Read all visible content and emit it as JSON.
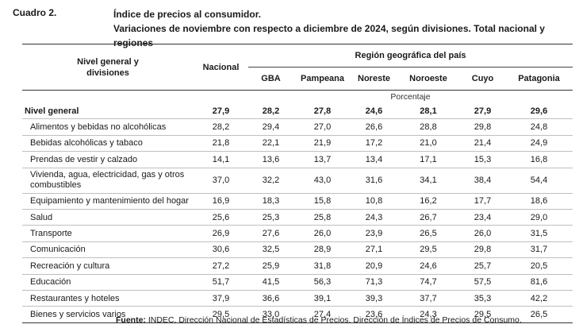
{
  "header": {
    "cuadro": "Cuadro 2.",
    "title_line1": "Índice de precios al consumidor.",
    "title_line2": "Variaciones de noviembre con respecto a diciembre de 2024, según divisiones. Total nacional y regiones"
  },
  "table": {
    "col_left_line1": "Nivel general y",
    "col_left_line2": "divisiones",
    "col_nacional": "Nacional",
    "region_header": "Región geográfica del país",
    "regions": [
      "GBA",
      "Pampeana",
      "Noreste",
      "Noroeste",
      "Cuyo",
      "Patagonia"
    ],
    "unit": "Porcentaje",
    "rows": [
      {
        "label": "Nivel general",
        "values": [
          "27,9",
          "28,2",
          "27,8",
          "24,6",
          "28,1",
          "27,9",
          "29,6"
        ]
      },
      {
        "label": "Alimentos y bebidas no alcohólicas",
        "values": [
          "28,2",
          "29,4",
          "27,0",
          "26,6",
          "28,8",
          "29,8",
          "24,8"
        ]
      },
      {
        "label": "Bebidas alcohólicas y tabaco",
        "values": [
          "21,8",
          "22,1",
          "21,9",
          "17,2",
          "21,0",
          "21,4",
          "24,9"
        ]
      },
      {
        "label": "Prendas de vestir y calzado",
        "values": [
          "14,1",
          "13,6",
          "13,7",
          "13,4",
          "17,1",
          "15,3",
          "16,8"
        ]
      },
      {
        "label": "Vivienda, agua, electricidad, gas y otros combustibles",
        "values": [
          "37,0",
          "32,2",
          "43,0",
          "31,6",
          "34,1",
          "38,4",
          "54,4"
        ]
      },
      {
        "label": "Equipamiento y mantenimiento del hogar",
        "values": [
          "16,9",
          "18,3",
          "15,8",
          "10,8",
          "16,2",
          "17,7",
          "18,6"
        ]
      },
      {
        "label": "Salud",
        "values": [
          "25,6",
          "25,3",
          "25,8",
          "24,3",
          "26,7",
          "23,4",
          "29,0"
        ]
      },
      {
        "label": "Transporte",
        "values": [
          "26,9",
          "27,6",
          "26,0",
          "23,9",
          "26,5",
          "26,0",
          "31,5"
        ]
      },
      {
        "label": "Comunicación",
        "values": [
          "30,6",
          "32,5",
          "28,9",
          "27,1",
          "29,5",
          "29,8",
          "31,7"
        ]
      },
      {
        "label": "Recreación y cultura",
        "values": [
          "27,2",
          "25,9",
          "31,8",
          "20,9",
          "24,6",
          "25,7",
          "20,5"
        ]
      },
      {
        "label": "Educación",
        "values": [
          "51,7",
          "41,5",
          "56,3",
          "71,3",
          "74,7",
          "57,5",
          "81,6"
        ]
      },
      {
        "label": "Restaurantes y hoteles",
        "values": [
          "37,9",
          "36,6",
          "39,1",
          "39,3",
          "37,7",
          "35,3",
          "42,2"
        ]
      },
      {
        "label": "Bienes y servicios varios",
        "values": [
          "29,5",
          "33,0",
          "27,4",
          "23,6",
          "24,3",
          "29,5",
          "26,5"
        ]
      }
    ]
  },
  "source": {
    "label": "Fuente:",
    "text": "INDEC, Dirección Nacional de Estadísticas de Precios. Dirección de Índices de Precios de Consumo."
  }
}
